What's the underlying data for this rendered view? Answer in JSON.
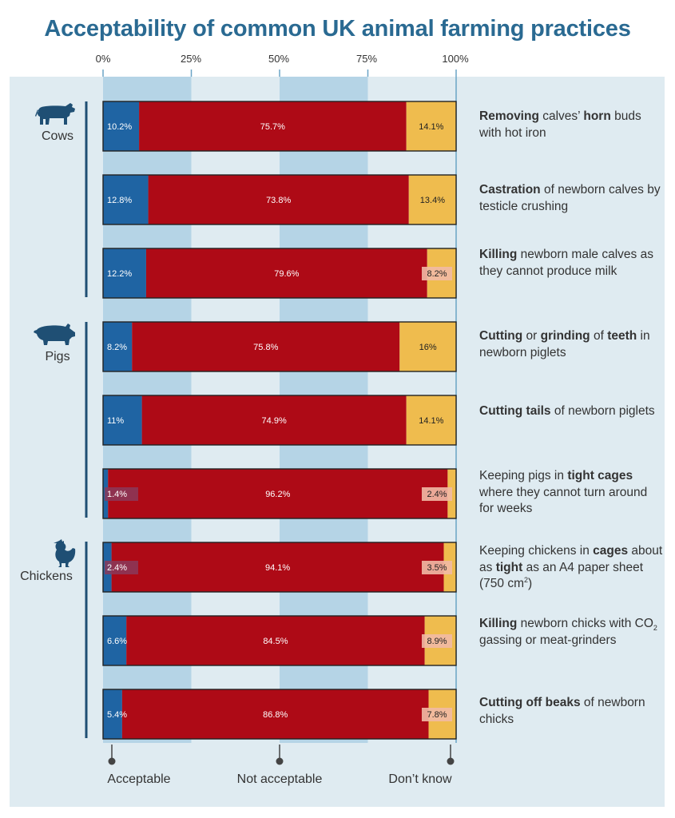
{
  "title": "Acceptability of common UK animal farming practices",
  "colors": {
    "acceptable": "#1f64a3",
    "not_acceptable": "#ae0a16",
    "dont_know": "#efbc4e",
    "title": "#2a6a92",
    "panel": "#dfebf1",
    "band": "#b5d4e6"
  },
  "groups": [
    {
      "label": "Cows",
      "icon": "cow-icon"
    },
    {
      "label": "Pigs",
      "icon": "pig-icon"
    },
    {
      "label": "Chickens",
      "icon": "chicken-icon"
    }
  ],
  "descriptions": [
    {
      "parts": [
        {
          "t": "Removing",
          "b": true
        },
        {
          "t": " calves’ ",
          "b": false
        },
        {
          "t": "horn",
          "b": true
        },
        {
          "t": " buds with hot iron",
          "b": false
        }
      ]
    },
    {
      "parts": [
        {
          "t": "Castration",
          "b": true
        },
        {
          "t": " of newborn calves by testicle crushing",
          "b": false
        }
      ]
    },
    {
      "parts": [
        {
          "t": "Killing",
          "b": true
        },
        {
          "t": " newborn male calves as they cannot produce milk",
          "b": false
        }
      ]
    },
    {
      "parts": [
        {
          "t": "Cutting",
          "b": true
        },
        {
          "t": " or ",
          "b": false
        },
        {
          "t": "grinding",
          "b": true
        },
        {
          "t": " of ",
          "b": false
        },
        {
          "t": "teeth",
          "b": true
        },
        {
          "t": " in newborn piglets",
          "b": false
        }
      ]
    },
    {
      "parts": [
        {
          "t": "Cutting tails",
          "b": true
        },
        {
          "t": " of newborn piglets",
          "b": false
        }
      ]
    },
    {
      "parts": [
        {
          "t": "Keeping pigs in ",
          "b": false
        },
        {
          "t": "tight cages",
          "b": true
        },
        {
          "t": " where they cannot turn around for weeks",
          "b": false
        }
      ]
    },
    {
      "parts": [
        {
          "t": "Keeping chickens in ",
          "b": false
        },
        {
          "t": "cages",
          "b": true
        },
        {
          "t": " about as ",
          "b": false
        },
        {
          "t": "tight",
          "b": true
        },
        {
          "t": " as an A4 paper sheet (750 cm",
          "b": false
        },
        {
          "t": "2",
          "b": false,
          "sup": true
        },
        {
          "t": ")",
          "b": false
        }
      ]
    },
    {
      "parts": [
        {
          "t": "Killing",
          "b": true
        },
        {
          "t": " newborn chicks with CO",
          "b": false
        },
        {
          "t": "2",
          "b": false,
          "sub": true
        },
        {
          "t": " gassing or meat-grinders",
          "b": false
        }
      ]
    },
    {
      "parts": [
        {
          "t": "Cutting off beaks",
          "b": true
        },
        {
          "t": " of newborn chicks",
          "b": false
        }
      ]
    }
  ],
  "bottom_labels": [
    "Acceptable",
    "Not  acceptable",
    "Don’t know"
  ],
  "chart_data": {
    "type": "bar",
    "orientation": "horizontal",
    "stacked": true,
    "title": "Acceptability of common UK animal farming practices",
    "xlim": [
      0,
      100
    ],
    "ticks": [
      "0%",
      "25%",
      "50%",
      "75%",
      "100%"
    ],
    "tick_values": [
      0,
      25,
      50,
      75,
      100
    ],
    "series": [
      {
        "name": "Acceptable",
        "values": [
          10.2,
          12.8,
          12.2,
          8.2,
          11,
          1.4,
          2.4,
          6.6,
          5.4
        ]
      },
      {
        "name": "Not  acceptable",
        "values": [
          75.7,
          73.8,
          79.6,
          75.8,
          74.9,
          96.2,
          94.1,
          84.5,
          86.8
        ]
      },
      {
        "name": "Don’t know",
        "values": [
          14.1,
          13.4,
          8.2,
          16,
          14.1,
          2.4,
          3.5,
          8.9,
          7.8
        ]
      }
    ],
    "data_labels": [
      [
        "10.2%",
        "75.7%",
        "14.1%"
      ],
      [
        "12.8%",
        "73.8%",
        "13.4%"
      ],
      [
        "12.2%",
        "79.6%",
        "8.2%"
      ],
      [
        "8.2%",
        "75.8%",
        "16%"
      ],
      [
        "11%",
        "74.9%",
        "14.1%"
      ],
      [
        "1.4%",
        "96.2%",
        "2.4%"
      ],
      [
        "2.4%",
        "94.1%",
        "3.5%"
      ],
      [
        "6.6%",
        "84.5%",
        "8.9%"
      ],
      [
        "5.4%",
        "86.8%",
        "7.8%"
      ]
    ]
  }
}
